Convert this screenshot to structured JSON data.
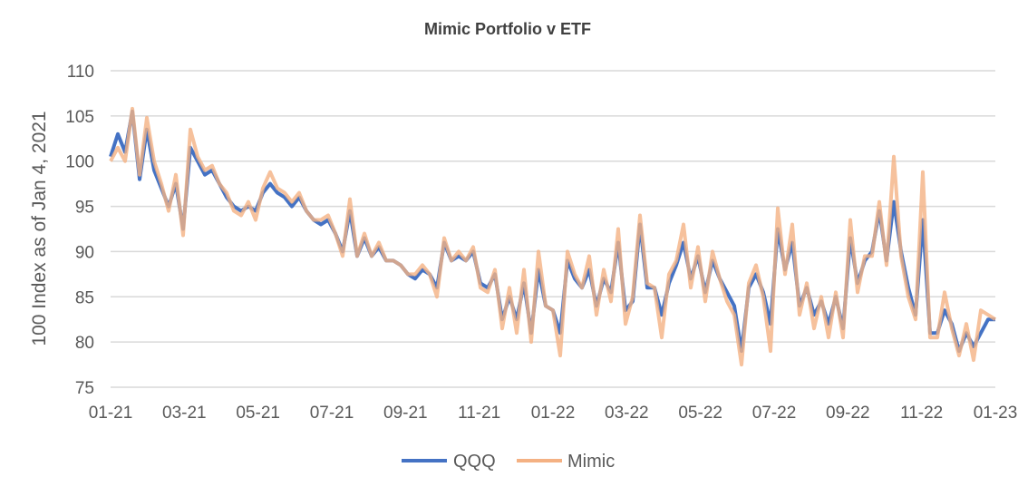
{
  "chart_data": {
    "type": "line",
    "title": "Mimic Portfolio v ETF",
    "xlabel": "",
    "ylabel": "100 Index as of Jan 4, 2021",
    "ylim": [
      75,
      110
    ],
    "yticks": [
      "75",
      "80",
      "85",
      "90",
      "95",
      "100",
      "105",
      "110"
    ],
    "xticks": [
      "01-21",
      "03-21",
      "05-21",
      "07-21",
      "09-21",
      "11-21",
      "01-22",
      "03-22",
      "05-22",
      "07-22",
      "09-22",
      "11-22",
      "01-23"
    ],
    "grid": true,
    "legend": "bottom",
    "series": [
      {
        "name": "QQQ",
        "color": "#4472C4",
        "values": [
          100.5,
          103,
          101,
          105.5,
          98,
          103.5,
          99,
          97,
          95,
          97.5,
          92.5,
          101.5,
          100,
          98.5,
          99,
          97.5,
          96,
          95,
          94.5,
          95,
          94.5,
          96.5,
          97.5,
          96.5,
          96,
          95,
          96,
          94.5,
          93.5,
          93,
          93.5,
          92,
          90,
          94.5,
          89.5,
          91.5,
          89.5,
          90.5,
          89,
          89,
          88.5,
          87.5,
          87,
          88,
          87.5,
          86,
          91,
          89,
          89.5,
          89,
          90,
          86.5,
          86,
          87.5,
          82.5,
          85,
          82.5,
          86.5,
          81,
          88,
          84,
          83.5,
          81,
          89,
          87,
          86,
          88,
          84,
          87,
          85.5,
          91,
          83.5,
          84.5,
          93,
          86,
          86,
          83,
          86.5,
          88.5,
          91,
          87,
          89.5,
          85.5,
          89,
          87,
          85.5,
          84,
          79,
          86,
          87.5,
          85.5,
          82,
          92.5,
          88,
          91,
          84,
          86,
          83,
          84.5,
          82,
          85,
          81.5,
          91.5,
          86.5,
          89,
          90,
          94.5,
          89,
          95.5,
          90,
          86,
          83,
          93.5,
          81,
          81,
          83.5,
          82,
          79,
          81,
          79.5,
          81,
          82.5,
          82.5
        ]
      },
      {
        "name": "Mimic",
        "color": "#F4B183",
        "values": [
          100,
          101.5,
          100,
          105.8,
          98.5,
          104.8,
          100,
          97.5,
          94.5,
          98.5,
          91.8,
          103.5,
          100.5,
          99,
          99.5,
          97.5,
          96.5,
          94.5,
          94,
          95.5,
          93.5,
          97,
          98.8,
          97,
          96.5,
          95.5,
          96.5,
          94.5,
          93.5,
          93.5,
          94,
          92,
          89.5,
          95.8,
          89.5,
          92,
          89.5,
          91,
          89,
          89,
          88.5,
          87.5,
          87.5,
          88.5,
          87.5,
          85,
          91.5,
          89,
          90,
          89,
          90.5,
          86,
          85.5,
          88,
          81.5,
          86,
          81,
          88,
          80,
          90,
          84,
          83.5,
          78.5,
          90,
          87.5,
          86,
          89.5,
          83,
          88,
          84.5,
          92.5,
          82,
          85,
          94,
          86.5,
          86,
          80.5,
          87.5,
          89,
          93,
          86,
          90.5,
          84.5,
          90,
          87,
          84.5,
          83,
          77.5,
          86.5,
          88.5,
          85,
          79,
          94.8,
          87.5,
          93,
          83,
          86.5,
          81.5,
          85,
          80.5,
          85.5,
          80.5,
          93.5,
          85.5,
          89.5,
          89.5,
          95.5,
          88.5,
          100.5,
          89.5,
          85,
          82.5,
          98.8,
          80.5,
          80.5,
          85.5,
          81.5,
          78.5,
          82,
          78,
          83.5,
          83,
          82.5
        ]
      }
    ]
  }
}
